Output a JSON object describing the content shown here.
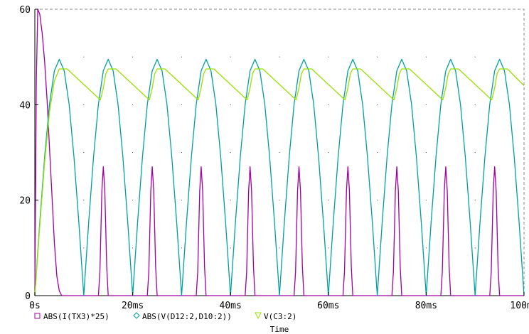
{
  "chart_data": {
    "type": "line",
    "xlabel": "Time",
    "ylabel": "",
    "title": "",
    "xlim": [
      0,
      100
    ],
    "ylim": [
      0,
      60
    ],
    "x_unit": "ms",
    "grid": "dotted",
    "legend_position": "bottom",
    "x_ticks": [
      {
        "value": 0,
        "label": "0s"
      },
      {
        "value": 20,
        "label": "20ms"
      },
      {
        "value": 40,
        "label": "40ms"
      },
      {
        "value": 60,
        "label": "60ms"
      },
      {
        "value": 80,
        "label": "80ms"
      },
      {
        "value": 100,
        "label": "100ms"
      }
    ],
    "y_ticks": [
      {
        "value": 0,
        "label": "0"
      },
      {
        "value": 20,
        "label": "20"
      },
      {
        "value": 40,
        "label": "40"
      },
      {
        "value": 60,
        "label": "60"
      }
    ],
    "series": [
      {
        "name": "ABS(I(TX3)*25)",
        "color": "#a000a0",
        "marker": "square",
        "x": [
          0,
          0.3,
          0.6,
          1.0,
          1.5,
          2.0,
          2.5,
          3.0,
          3.5,
          4.0,
          4.5,
          5.0,
          5.5,
          6.0,
          7.0,
          13.0,
          13.3,
          13.7,
          14.0,
          14.3,
          14.7,
          15.0,
          23.0,
          23.3,
          23.7,
          24.0,
          24.3,
          24.7,
          25.0,
          33.0,
          33.3,
          33.7,
          34.0,
          34.3,
          34.7,
          35.0,
          43.0,
          43.3,
          43.7,
          44.0,
          44.3,
          44.7,
          45.0,
          53.0,
          53.3,
          53.7,
          54.0,
          54.3,
          54.7,
          55.0,
          63.0,
          63.3,
          63.7,
          64.0,
          64.3,
          64.7,
          65.0,
          73.0,
          73.3,
          73.7,
          74.0,
          74.3,
          74.7,
          75.0,
          83.0,
          83.3,
          83.7,
          84.0,
          84.3,
          84.7,
          85.0,
          93.0,
          93.3,
          93.7,
          94.0,
          94.3,
          94.7,
          95.0,
          100
        ],
        "y": [
          0,
          45,
          60,
          59,
          55,
          49,
          41,
          31,
          21,
          11,
          4,
          1,
          0,
          0,
          0,
          0,
          5,
          22,
          27,
          22,
          6,
          0,
          0,
          5,
          22,
          27,
          22,
          6,
          0,
          0,
          5,
          22,
          27,
          22,
          6,
          0,
          0,
          5,
          22,
          27,
          22,
          6,
          0,
          0,
          5,
          22,
          27,
          22,
          6,
          0,
          0,
          5,
          22,
          27,
          22,
          6,
          0,
          0,
          5,
          22,
          27,
          22,
          6,
          0,
          0,
          5,
          22,
          27,
          22,
          6,
          0,
          0,
          5,
          22,
          27,
          22,
          6,
          0,
          0
        ]
      },
      {
        "name": "ABS(V(D12:2,D10:2))",
        "color": "#00a0a0",
        "marker": "diamond",
        "x": [
          0,
          1,
          2,
          3,
          4,
          5,
          6,
          7,
          8,
          9,
          10,
          11,
          12,
          13,
          14,
          15,
          16,
          17,
          18,
          19,
          20,
          21,
          22,
          23,
          24,
          25,
          26,
          27,
          28,
          29,
          30,
          31,
          32,
          33,
          34,
          35,
          36,
          37,
          38,
          39,
          40,
          41,
          42,
          43,
          44,
          45,
          46,
          47,
          48,
          49,
          50,
          51,
          52,
          53,
          54,
          55,
          56,
          57,
          58,
          59,
          60,
          61,
          62,
          63,
          64,
          65,
          66,
          67,
          68,
          69,
          70,
          71,
          72,
          73,
          74,
          75,
          76,
          77,
          78,
          79,
          80,
          81,
          82,
          83,
          84,
          85,
          86,
          87,
          88,
          89,
          90,
          91,
          92,
          93,
          94,
          95,
          96,
          97,
          98,
          99,
          100
        ],
        "y": [
          0,
          15.3,
          29.1,
          40.1,
          47.1,
          49.5,
          47.1,
          40.1,
          29.1,
          15.3,
          0,
          15.3,
          29.1,
          40.1,
          47.1,
          49.5,
          47.1,
          40.1,
          29.1,
          15.3,
          0,
          15.3,
          29.1,
          40.1,
          47.1,
          49.5,
          47.1,
          40.1,
          29.1,
          15.3,
          0,
          15.3,
          29.1,
          40.1,
          47.1,
          49.5,
          47.1,
          40.1,
          29.1,
          15.3,
          0,
          15.3,
          29.1,
          40.1,
          47.1,
          49.5,
          47.1,
          40.1,
          29.1,
          15.3,
          0,
          15.3,
          29.1,
          40.1,
          47.1,
          49.5,
          47.1,
          40.1,
          29.1,
          15.3,
          0,
          15.3,
          29.1,
          40.1,
          47.1,
          49.5,
          47.1,
          40.1,
          29.1,
          15.3,
          0,
          15.3,
          29.1,
          40.1,
          47.1,
          49.5,
          47.1,
          40.1,
          29.1,
          15.3,
          0,
          15.3,
          29.1,
          40.1,
          47.1,
          49.5,
          47.1,
          40.1,
          29.1,
          15.3,
          0,
          15.3,
          29.1,
          40.1,
          47.1,
          49.5,
          47.1,
          40.1,
          29.1,
          15.3,
          0
        ]
      },
      {
        "name": "V(C3:2)",
        "color": "#99e000",
        "marker": "triangle",
        "x": [
          0,
          1,
          2,
          3,
          4,
          5,
          6.6,
          13.4,
          14,
          14.5,
          15,
          16.6,
          23.4,
          24,
          24.5,
          25,
          26.6,
          33.4,
          34,
          34.5,
          35,
          36.6,
          43.4,
          44,
          44.5,
          45,
          46.6,
          53.4,
          54,
          54.5,
          55,
          56.6,
          63.4,
          64,
          64.5,
          65,
          66.6,
          73.4,
          74,
          74.5,
          75,
          76.6,
          83.4,
          84,
          84.5,
          85,
          86.6,
          93.4,
          94,
          94.5,
          95,
          96.6,
          100
        ],
        "y": [
          0,
          14.5,
          28,
          38.5,
          45,
          47.5,
          47.5,
          41,
          43.5,
          46.5,
          47.5,
          47.5,
          41,
          43.5,
          46.5,
          47.5,
          47.5,
          41,
          43.5,
          46.5,
          47.5,
          47.5,
          41,
          43.5,
          46.5,
          47.5,
          47.5,
          41,
          43.5,
          46.5,
          47.5,
          47.5,
          41,
          43.5,
          46.5,
          47.5,
          47.5,
          41,
          43.5,
          46.5,
          47.5,
          47.5,
          41,
          43.5,
          46.5,
          47.5,
          47.5,
          41,
          43.5,
          46.5,
          47.5,
          47.5,
          44
        ]
      }
    ]
  }
}
